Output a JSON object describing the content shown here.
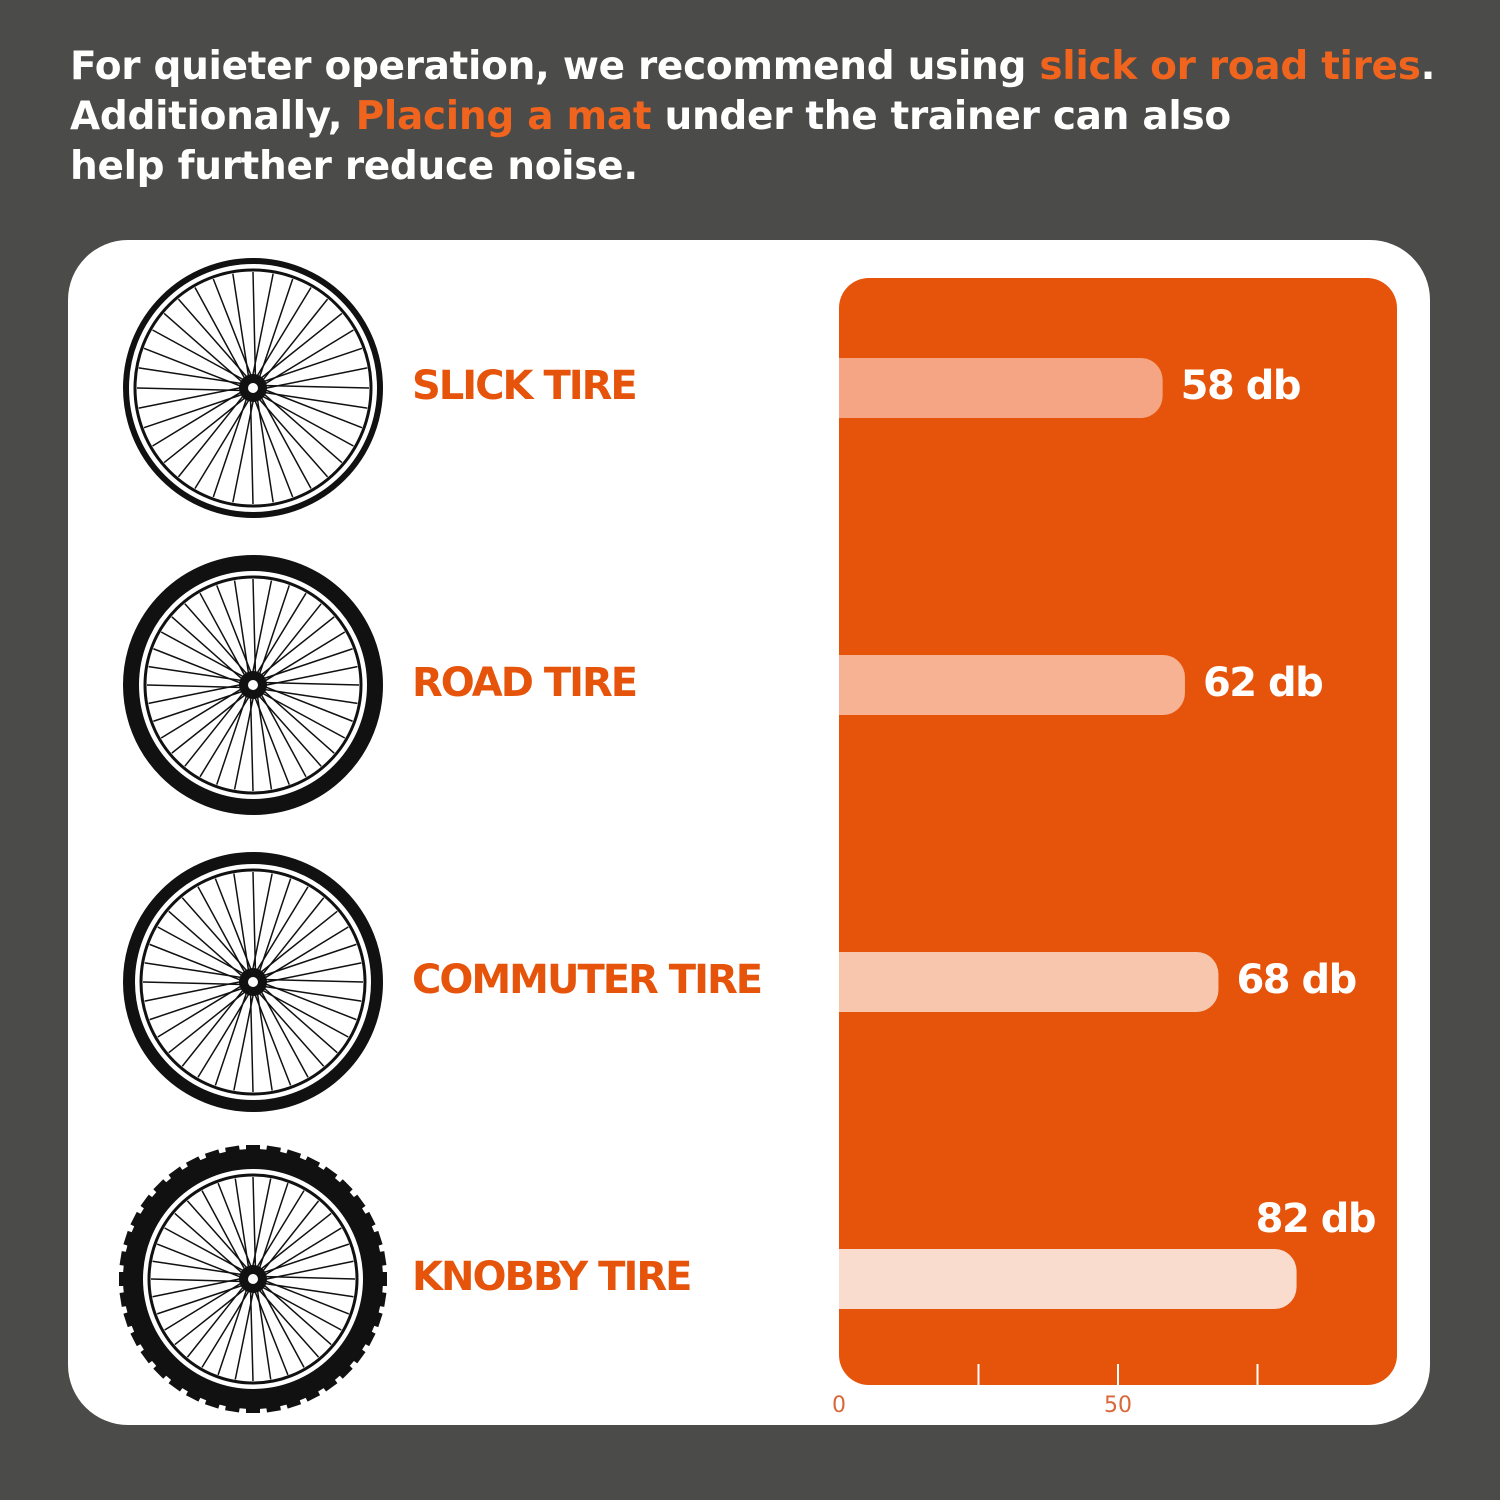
{
  "header": {
    "lines": [
      [
        {
          "text": "For quieter operation, we recommend using "
        },
        {
          "text": "slick or road tires",
          "highlight": true
        },
        {
          "text": "."
        }
      ],
      [
        {
          "text": "Additionally, "
        },
        {
          "text": "Placing a mat",
          "highlight": true
        },
        {
          "text": " under the trainer can also"
        }
      ],
      [
        {
          "text": "help further reduce noise."
        }
      ]
    ],
    "highlight_color": "#f0641e"
  },
  "chart_data": {
    "type": "hbar",
    "categories": [
      "SLICK TIRE",
      "ROAD TIRE",
      "COMMUTER TIRE",
      "KNOBBY TIRE"
    ],
    "values": [
      58,
      62,
      68,
      82
    ],
    "value_labels": [
      "58 db",
      "62 db",
      "68 db",
      "82 db"
    ],
    "colors": [
      "#f5a583",
      "#f6b292",
      "#f8c6ad",
      "#fadccf"
    ],
    "panel_color": "#e5540a",
    "xlim": [
      0,
      100
    ],
    "xticks": [
      0,
      50
    ],
    "xminor": [
      25,
      75
    ]
  }
}
